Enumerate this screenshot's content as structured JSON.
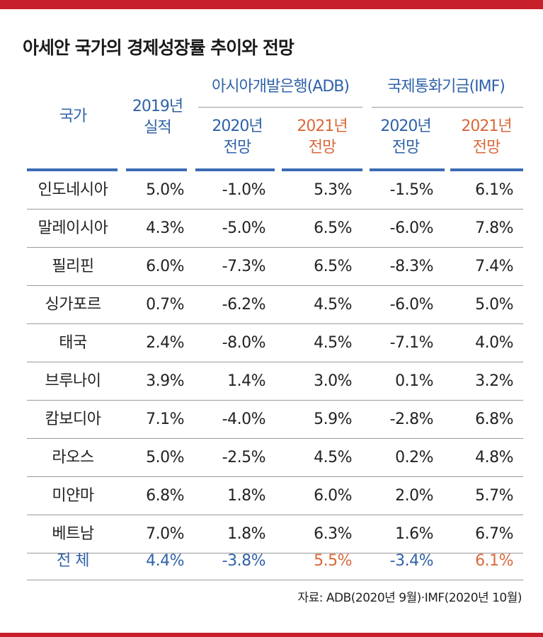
{
  "title": "아세안 국가의 경제성장률 추이와 전망",
  "colors": {
    "accent_blue": "#2f62a8",
    "accent_orange": "#d9693a",
    "bar_red": "#c8202a"
  },
  "header": {
    "country": "국가",
    "actual_2019": {
      "line1": "2019년",
      "line2": "실적"
    },
    "adb": {
      "label": "아시아개발은행(ADB)",
      "y2020": {
        "line1": "2020년",
        "line2": "전망"
      },
      "y2021": {
        "line1": "2021년",
        "line2": "전망"
      }
    },
    "imf": {
      "label": "국제통화기금(IMF)",
      "y2020": {
        "line1": "2020년",
        "line2": "전망"
      },
      "y2021": {
        "line1": "2021년",
        "line2": "전망"
      }
    }
  },
  "rows": [
    {
      "country": "인도네시아",
      "actual_2019": "5.0%",
      "adb_2020": "-1.0%",
      "adb_2021": "5.3%",
      "imf_2020": "-1.5%",
      "imf_2021": "6.1%"
    },
    {
      "country": "말레이시아",
      "actual_2019": "4.3%",
      "adb_2020": "-5.0%",
      "adb_2021": "6.5%",
      "imf_2020": "-6.0%",
      "imf_2021": "7.8%"
    },
    {
      "country": "필리핀",
      "actual_2019": "6.0%",
      "adb_2020": "-7.3%",
      "adb_2021": "6.5%",
      "imf_2020": "-8.3%",
      "imf_2021": "7.4%"
    },
    {
      "country": "싱가포르",
      "actual_2019": "0.7%",
      "adb_2020": "-6.2%",
      "adb_2021": "4.5%",
      "imf_2020": "-6.0%",
      "imf_2021": "5.0%"
    },
    {
      "country": "태국",
      "actual_2019": "2.4%",
      "adb_2020": "-8.0%",
      "adb_2021": "4.5%",
      "imf_2020": "-7.1%",
      "imf_2021": "4.0%"
    },
    {
      "country": "브루나이",
      "actual_2019": "3.9%",
      "adb_2020": "1.4%",
      "adb_2021": "3.0%",
      "imf_2020": "0.1%",
      "imf_2021": "3.2%"
    },
    {
      "country": "캄보디아",
      "actual_2019": "7.1%",
      "adb_2020": "-4.0%",
      "adb_2021": "5.9%",
      "imf_2020": "-2.8%",
      "imf_2021": "6.8%"
    },
    {
      "country": "라오스",
      "actual_2019": "5.0%",
      "adb_2020": "-2.5%",
      "adb_2021": "4.5%",
      "imf_2020": "0.2%",
      "imf_2021": "4.8%"
    },
    {
      "country": "미얀마",
      "actual_2019": "6.8%",
      "adb_2020": "1.8%",
      "adb_2021": "6.0%",
      "imf_2020": "2.0%",
      "imf_2021": "5.7%"
    },
    {
      "country": "베트남",
      "actual_2019": "7.0%",
      "adb_2020": "1.8%",
      "adb_2021": "6.3%",
      "imf_2020": "1.6%",
      "imf_2021": "6.7%"
    }
  ],
  "total": {
    "country": "전 체",
    "actual_2019": "4.4%",
    "adb_2020": "-3.8%",
    "adb_2021": "5.5%",
    "imf_2020": "-3.4%",
    "imf_2021": "6.1%"
  },
  "source": "자료: ADB(2020년 9월)·IMF(2020년 10월)"
}
